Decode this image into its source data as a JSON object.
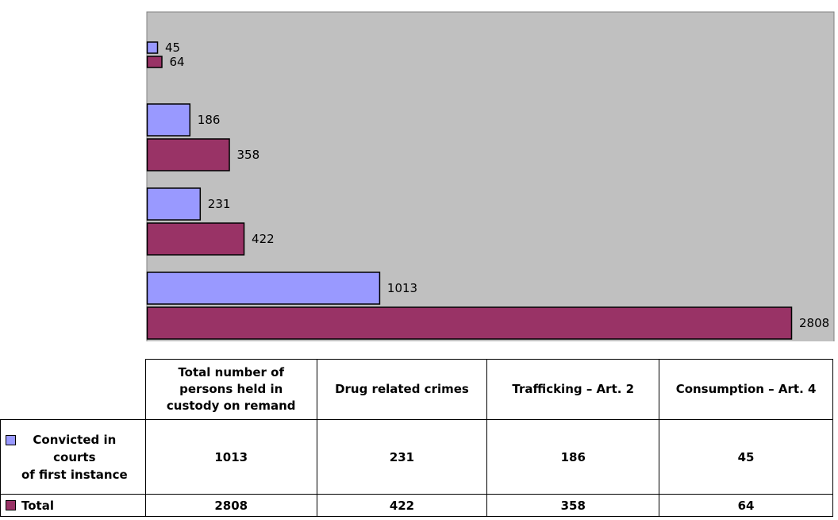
{
  "chart_data": {
    "type": "bar",
    "orientation": "horizontal",
    "categories": [
      "Total number of persons held in custody on remand",
      "Drug related crimes",
      "Trafficking – Art. 2",
      "Consumption – Art. 4"
    ],
    "category_header_lines": [
      [
        "Total number of",
        "persons held in",
        "custody on remand"
      ],
      [
        "Drug related crimes"
      ],
      [
        "Trafficking – Art. 2"
      ],
      [
        "Consumption – Art. 4"
      ]
    ],
    "series": [
      {
        "name": "Convicted in courts of first instance",
        "name_lines": [
          "Convicted in",
          "courts",
          "of first instance"
        ],
        "color": "#9999ff",
        "values": [
          1013,
          231,
          186,
          45
        ]
      },
      {
        "name": "Total",
        "name_lines": [
          "Total"
        ],
        "color": "#993366",
        "values": [
          2808,
          422,
          358,
          64
        ]
      }
    ],
    "xlim": [
      0,
      2808
    ],
    "plot_background": "#c0c0c0",
    "grid": false,
    "legend": "data-table",
    "data_labels": true
  }
}
